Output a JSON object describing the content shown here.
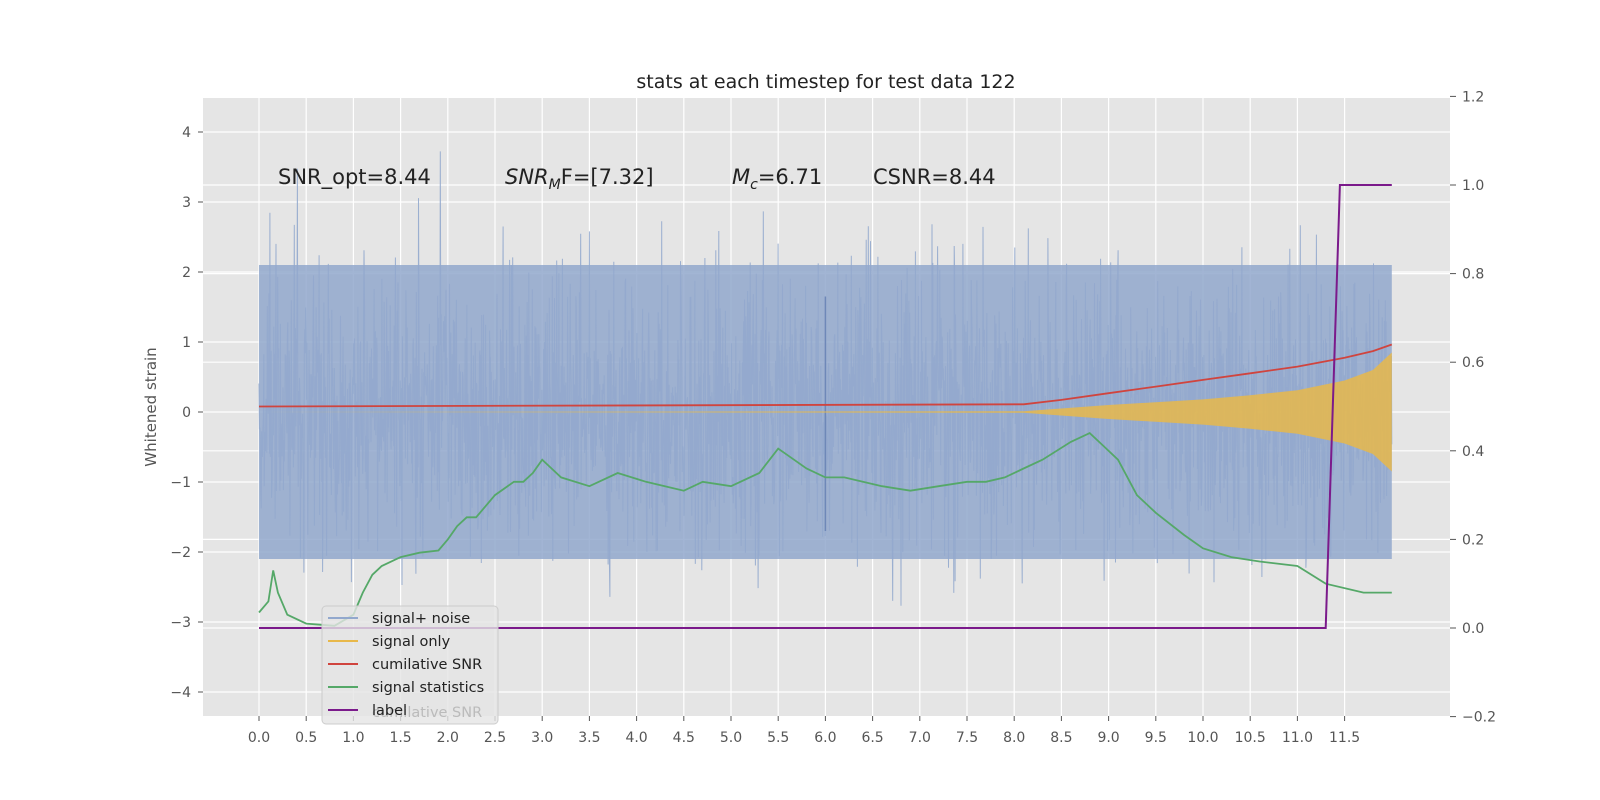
{
  "chart_data": {
    "type": "line",
    "title": "stats at each timestep for test data 122",
    "ylabel": "Whitened strain",
    "xlabel": "",
    "xlim": [
      -0.6,
      12.6
    ],
    "ylim": [
      -4.4,
      4.5
    ],
    "y2lim": [
      -0.2,
      1.2
    ],
    "grid": true,
    "legend_position": "lower-left",
    "x_ticks": [
      "0.0",
      "0.5",
      "1.0",
      "1.5",
      "2.0",
      "2.5",
      "3.0",
      "3.5",
      "4.0",
      "4.5",
      "5.0",
      "5.5",
      "6.0",
      "6.5",
      "7.0",
      "7.5",
      "8.0",
      "8.5",
      "9.0",
      "9.5",
      "10.0",
      "10.5",
      "11.0",
      "11.5"
    ],
    "y_ticks": [
      "4",
      "3",
      "2",
      "1",
      "0",
      "−1",
      "−2",
      "−3",
      "−4"
    ],
    "y2_ticks": [
      "1.2",
      "1.0",
      "0.8",
      "0.6",
      "0.4",
      "0.2",
      "0.0",
      "−0.2"
    ],
    "annotations": [
      "SNR_opt=8.44",
      "SNR",
      "M",
      "F=[7.32]",
      "M",
      "c",
      "=6.71",
      "CSNR=8.44"
    ],
    "series": [
      {
        "name": "signal+ noise",
        "color": "#92a8cd",
        "axis": "left",
        "note_type": "noise",
        "x_range": [
          0,
          12.0
        ]
      },
      {
        "name": "signal only",
        "color": "#e8b84a",
        "axis": "left",
        "envelope": {
          "x": [
            0,
            8.1,
            9.0,
            10.0,
            10.5,
            11.0,
            11.5,
            11.8,
            12.0
          ],
          "amplitude": [
            0,
            0.01,
            0.1,
            0.18,
            0.24,
            0.31,
            0.45,
            0.6,
            0.85
          ]
        }
      },
      {
        "name": "cumilative SNR",
        "color": "#d0443e",
        "axis": "right",
        "x": [
          0,
          8.1,
          8.5,
          9.0,
          9.5,
          10.0,
          10.5,
          11.0,
          11.5,
          11.8,
          12.0
        ],
        "y": [
          0.5,
          0.505,
          0.515,
          0.53,
          0.545,
          0.56,
          0.575,
          0.59,
          0.61,
          0.625,
          0.64
        ]
      },
      {
        "name": "signal statistics",
        "color": "#55a868",
        "axis": "right",
        "x": [
          0,
          0.1,
          0.15,
          0.2,
          0.3,
          0.5,
          0.8,
          1.0,
          1.1,
          1.2,
          1.3,
          1.5,
          1.7,
          1.9,
          2.0,
          2.1,
          2.2,
          2.3,
          2.5,
          2.7,
          2.8,
          2.9,
          3.0,
          3.1,
          3.2,
          3.5,
          3.8,
          4.1,
          4.3,
          4.5,
          4.7,
          5.0,
          5.3,
          5.5,
          5.6,
          5.8,
          6.0,
          6.2,
          6.6,
          6.9,
          7.2,
          7.5,
          7.7,
          7.9,
          8.1,
          8.3,
          8.6,
          8.8,
          8.95,
          9.1,
          9.3,
          9.5,
          9.8,
          10.0,
          10.3,
          10.6,
          11.0,
          11.3,
          11.7,
          12.0
        ],
        "y": [
          0.035,
          0.06,
          0.13,
          0.08,
          0.03,
          0.01,
          0.005,
          0.03,
          0.08,
          0.12,
          0.14,
          0.16,
          0.17,
          0.175,
          0.2,
          0.23,
          0.25,
          0.25,
          0.3,
          0.33,
          0.33,
          0.35,
          0.38,
          0.36,
          0.34,
          0.32,
          0.35,
          0.33,
          0.32,
          0.31,
          0.33,
          0.32,
          0.35,
          0.405,
          0.39,
          0.36,
          0.34,
          0.34,
          0.32,
          0.31,
          0.32,
          0.33,
          0.33,
          0.34,
          0.36,
          0.38,
          0.42,
          0.44,
          0.41,
          0.38,
          0.3,
          0.26,
          0.21,
          0.18,
          0.16,
          0.15,
          0.14,
          0.1,
          0.08,
          0.08
        ]
      },
      {
        "name": "label",
        "color": "#7b1a8b",
        "axis": "right",
        "x": [
          0,
          11.3,
          11.45,
          12.0
        ],
        "y": [
          0,
          0,
          1,
          1
        ]
      }
    ],
    "legend_ghost_text": "cumilative SNR"
  }
}
